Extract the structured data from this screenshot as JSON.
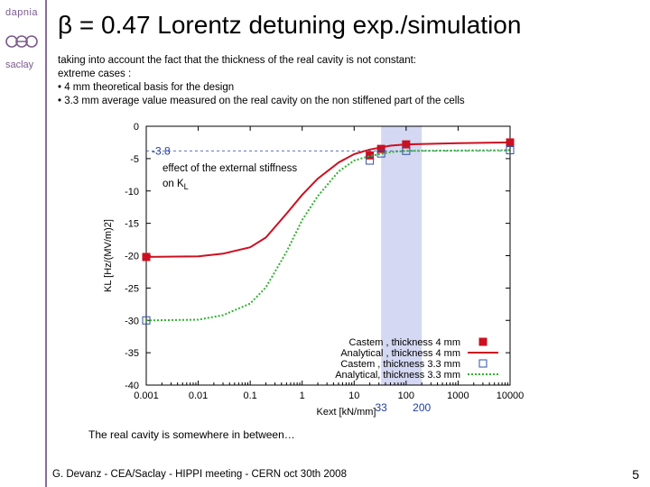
{
  "logo": {
    "top_text": "dapnia",
    "middle_text": "cea",
    "bottom_text": "saclay"
  },
  "title": "β = 0.47 Lorentz detuning exp./simulation",
  "intro_lines": [
    "taking into account the fact that the thickness of the real cavity is not constant:",
    "extreme cases :",
    "• 4 mm theoretical basis for the design",
    "• 3.3 mm average value measured on the real cavity on the non stiffened part of the cells"
  ],
  "chart_data": {
    "type": "scatter",
    "xlabel": "Kext [kN/mm]",
    "ylabel": "KL [Hz/(MV/m)2]",
    "x_scale": "log",
    "xlim": [
      0.001,
      10000
    ],
    "ylim": [
      -40,
      0
    ],
    "x_ticks": [
      "0.001",
      "0.01",
      "0.1",
      "1",
      "10",
      "100",
      "1000",
      "10000"
    ],
    "y_ticks": [
      "0",
      "-5",
      "-10",
      "-15",
      "-20",
      "-25",
      "-30",
      "-35",
      "-40"
    ],
    "highlight_band": {
      "x_range": [
        33,
        200
      ],
      "labels": [
        "33",
        "200"
      ],
      "color": "#d4d8f2"
    },
    "annotations": [
      {
        "text": "-3.8",
        "at_y": -3.8
      },
      {
        "text": "effect of the external stiffness",
        "line": 1
      },
      {
        "text": "on K",
        "subscript": "L",
        "line": 2
      }
    ],
    "series": [
      {
        "name": "Castem , thickness 4 mm",
        "kind": "points",
        "marker": "filled-square",
        "color": "#cc1020",
        "x": [
          0.001,
          20,
          33,
          100,
          10000
        ],
        "y": [
          -20.2,
          -4.5,
          -3.5,
          -2.8,
          -2.5
        ]
      },
      {
        "name": "Analytical , thickness 4 mm",
        "kind": "line",
        "style": "solid",
        "color": "#cc1020",
        "x": [
          0.001,
          0.01,
          0.03,
          0.1,
          0.2,
          0.5,
          1,
          2,
          5,
          10,
          20,
          50,
          100,
          1000,
          10000
        ],
        "y": [
          -20.2,
          -20.1,
          -19.7,
          -18.7,
          -17.2,
          -13.5,
          -10.6,
          -8.1,
          -5.6,
          -4.3,
          -3.6,
          -3.0,
          -2.8,
          -2.6,
          -2.5
        ]
      },
      {
        "name": "Castem , thickness 3.3 mm",
        "kind": "points",
        "marker": "open-square",
        "color": "#3050a0",
        "x": [
          0.001,
          20,
          33,
          100,
          10000
        ],
        "y": [
          -30.0,
          -5.3,
          -4.2,
          -3.8,
          -3.7
        ]
      },
      {
        "name": "Analytical, thickness 3.3 mm",
        "kind": "line",
        "style": "dotted",
        "color": "#30b030",
        "x": [
          0.001,
          0.01,
          0.03,
          0.1,
          0.2,
          0.5,
          1,
          2,
          5,
          10,
          20,
          50,
          100,
          1000,
          10000
        ],
        "y": [
          -30.0,
          -29.9,
          -29.2,
          -27.4,
          -24.9,
          -19.4,
          -14.5,
          -10.8,
          -7.0,
          -5.3,
          -4.6,
          -4.0,
          -3.8,
          -3.75,
          -3.7
        ]
      }
    ],
    "legend_position": "bottom-right",
    "grid": false
  },
  "conclusion": "The real cavity is somewhere in between…",
  "footer": "G. Devanz - CEA/Saclay - HIPPI meeting - CERN oct 30th 2008",
  "page_number": "5"
}
